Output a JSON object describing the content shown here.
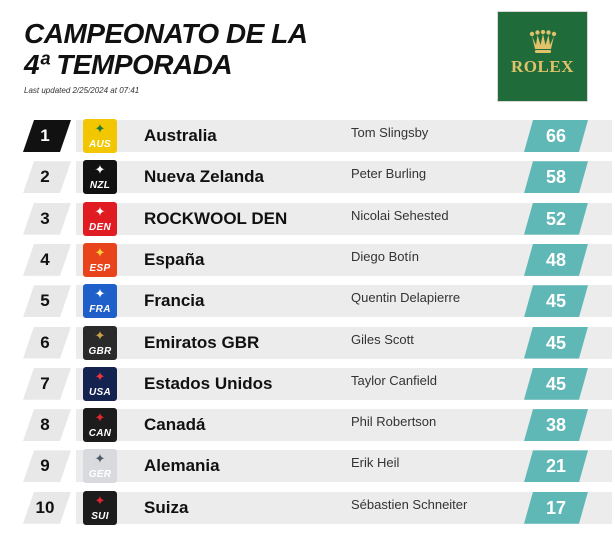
{
  "header": {
    "title_line1": "CAMPEONATO DE LA",
    "title_line2": "4ª TEMPORADA",
    "last_updated": "Last updated 2/25/2024 at 07:41"
  },
  "sponsor": {
    "logo_text": "ROLEX",
    "logo_bg": "#1f6b39",
    "logo_text_color": "#e0c26a"
  },
  "colors": {
    "points_bg": "#5fb8b6",
    "row_bg": "#ececec",
    "leader_rank_bg": "#111111"
  },
  "standings": [
    {
      "rank": "1",
      "flag_code": "AUS",
      "flag_bg": "#f2c600",
      "flag_fg": "#1a7a3a",
      "flag_icon": "kangaroo-icon",
      "team": "Australia",
      "driver": "Tom Slingsby",
      "points": "66"
    },
    {
      "rank": "2",
      "flag_code": "NZL",
      "flag_bg": "#111111",
      "flag_fg": "#ffffff",
      "flag_icon": "fern-icon",
      "team": "Nueva Zelanda",
      "driver": "Peter Burling",
      "points": "58"
    },
    {
      "rank": "3",
      "flag_code": "DEN",
      "flag_bg": "#e01b22",
      "flag_fg": "#ffffff",
      "flag_icon": "swirl-icon",
      "team": "ROCKWOOL DEN",
      "driver": "Nicolai Sehested",
      "points": "52"
    },
    {
      "rank": "4",
      "flag_code": "ESP",
      "flag_bg": "#e8431b",
      "flag_fg": "#ffcf3a",
      "flag_icon": "bird-icon",
      "team": "España",
      "driver": "Diego Botín",
      "points": "48"
    },
    {
      "rank": "5",
      "flag_code": "FRA",
      "flag_bg": "#1f5fc9",
      "flag_fg": "#ffffff",
      "flag_icon": "rooster-icon",
      "team": "Francia",
      "driver": "Quentin Delapierre",
      "points": "45"
    },
    {
      "rank": "6",
      "flag_code": "GBR",
      "flag_bg": "#2a2a2a",
      "flag_fg": "#c9a24a",
      "flag_icon": "lion-icon",
      "team": "Emiratos GBR",
      "driver": "Giles Scott",
      "points": "45"
    },
    {
      "rank": "7",
      "flag_code": "USA",
      "flag_bg": "#14224f",
      "flag_fg": "#e8343c",
      "flag_icon": "eagle-icon",
      "team": "Estados Unidos",
      "driver": "Taylor Canfield",
      "points": "45"
    },
    {
      "rank": "8",
      "flag_code": "CAN",
      "flag_bg": "#1c1c1c",
      "flag_fg": "#e0262f",
      "flag_icon": "maple-leaf-icon",
      "team": "Canadá",
      "driver": "Phil Robertson",
      "points": "38"
    },
    {
      "rank": "9",
      "flag_code": "GER",
      "flag_bg": "#d8dadd",
      "flag_fg": "#4d5a66",
      "flag_icon": "eagle-icon",
      "team": "Alemania",
      "driver": "Erik Heil",
      "points": "21"
    },
    {
      "rank": "10",
      "flag_code": "SUI",
      "flag_bg": "#1c1c1c",
      "flag_fg": "#e0262f",
      "flag_icon": "sail-icon",
      "team": "Suiza",
      "driver": "Sébastien Schneiter",
      "points": "17"
    }
  ]
}
